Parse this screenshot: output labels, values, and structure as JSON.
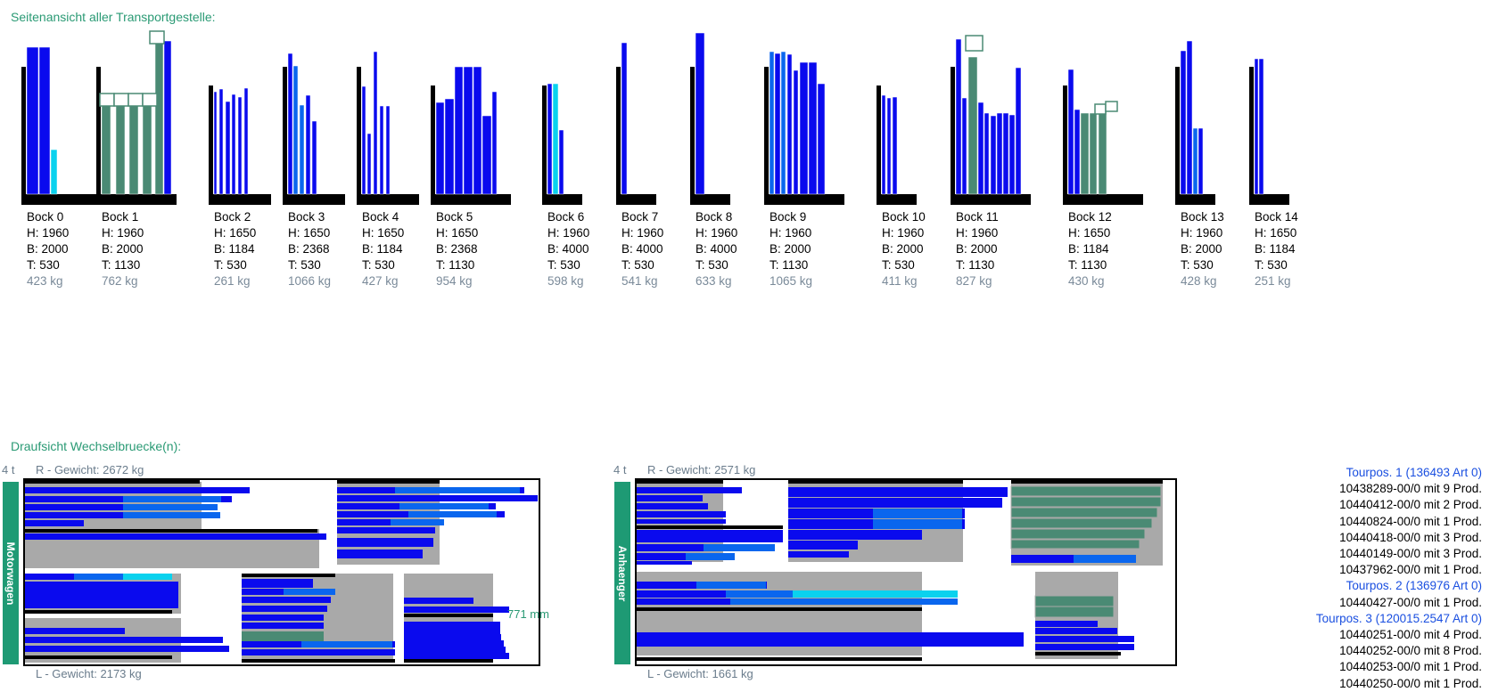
{
  "side_view_title": "Seitenansicht aller Transportgestelle:",
  "top_view_title": "Draufsicht Wechselbruecke(n):",
  "colors": {
    "blue": "#0a0aee",
    "mid_blue": "#0a66ee",
    "cyan": "#0ad2ee",
    "green": "#4a8a74",
    "gray": "#a9a9a9",
    "accent": "#2a9a74"
  },
  "racks": [
    {
      "name": "Bock 0",
      "h": "H: 1960",
      "b": "B: 2000",
      "t": "T: 530",
      "kg": "423 kg"
    },
    {
      "name": "Bock 1",
      "h": "H: 1960",
      "b": "B: 2000",
      "t": "T: 1130",
      "kg": "762 kg"
    },
    {
      "name": "Bock 2",
      "h": "H: 1650",
      "b": "B: 1184",
      "t": "T: 530",
      "kg": "261 kg"
    },
    {
      "name": "Bock 3",
      "h": "H: 1650",
      "b": "B: 2368",
      "t": "T: 530",
      "kg": "1066 kg"
    },
    {
      "name": "Bock 4",
      "h": "H: 1650",
      "b": "B: 1184",
      "t": "T: 530",
      "kg": "427 kg"
    },
    {
      "name": "Bock 5",
      "h": "H: 1650",
      "b": "B: 2368",
      "t": "T: 1130",
      "kg": "954 kg"
    },
    {
      "name": "Bock 6",
      "h": "H: 1960",
      "b": "B: 4000",
      "t": "T: 530",
      "kg": "598 kg"
    },
    {
      "name": "Bock 7",
      "h": "H: 1960",
      "b": "B: 4000",
      "t": "T: 530",
      "kg": "541 kg"
    },
    {
      "name": "Bock 8",
      "h": "H: 1960",
      "b": "B: 4000",
      "t": "T: 530",
      "kg": "633 kg"
    },
    {
      "name": "Bock 9",
      "h": "H: 1960",
      "b": "B: 2000",
      "t": "T: 1130",
      "kg": "1065 kg"
    },
    {
      "name": "Bock 10",
      "h": "H: 1960",
      "b": "B: 2000",
      "t": "T: 530",
      "kg": "411 kg"
    },
    {
      "name": "Bock 11",
      "h": "H: 1960",
      "b": "B: 2000",
      "t": "T: 1130",
      "kg": "827 kg"
    },
    {
      "name": "Bock 12",
      "h": "H: 1650",
      "b": "B: 1184",
      "t": "T: 1130",
      "kg": "430 kg"
    },
    {
      "name": "Bock 13",
      "h": "H: 1960",
      "b": "B: 2000",
      "t": "T: 530",
      "kg": "428 kg"
    },
    {
      "name": "Bock 14",
      "h": "H: 1650",
      "b": "B: 1184",
      "t": "T: 530",
      "kg": "251 kg"
    }
  ],
  "vehicles": [
    {
      "label": "Motorwagen",
      "tons": "4 t",
      "r_weight": "R - Gewicht: 2672 kg",
      "l_weight": "L - Gewicht: 2173 kg",
      "dimension": "771 mm"
    },
    {
      "label": "Anhaenger",
      "tons": "4 t",
      "r_weight": "R - Gewicht: 2571 kg",
      "l_weight": "L - Gewicht: 1661 kg"
    }
  ],
  "tour_list": [
    {
      "kind": "tourpos",
      "text": "Tourpos. 1 (136493 Art 0)"
    },
    {
      "kind": "item",
      "text": "10438289-00/0 mit 9 Prod."
    },
    {
      "kind": "item",
      "text": "10440412-00/0 mit 2 Prod."
    },
    {
      "kind": "item",
      "text": "10440824-00/0 mit 1 Prod."
    },
    {
      "kind": "item",
      "text": "10440418-00/0 mit 3 Prod."
    },
    {
      "kind": "item",
      "text": "10440149-00/0 mit 3 Prod."
    },
    {
      "kind": "item",
      "text": "10437962-00/0 mit 1 Prod."
    },
    {
      "kind": "tourpos",
      "text": "Tourpos. 2 (136976 Art 0)"
    },
    {
      "kind": "item",
      "text": "10440427-00/0 mit 1 Prod."
    },
    {
      "kind": "tourpos",
      "text": "Tourpos. 3 (120015.2547 Art 0)"
    },
    {
      "kind": "item",
      "text": "10440251-00/0 mit 4 Prod."
    },
    {
      "kind": "item",
      "text": "10440252-00/0 mit 8 Prod."
    },
    {
      "kind": "item",
      "text": "10440253-00/0 mit 1 Prod."
    },
    {
      "kind": "item",
      "text": "10440250-00/0 mit 1 Prod."
    }
  ]
}
